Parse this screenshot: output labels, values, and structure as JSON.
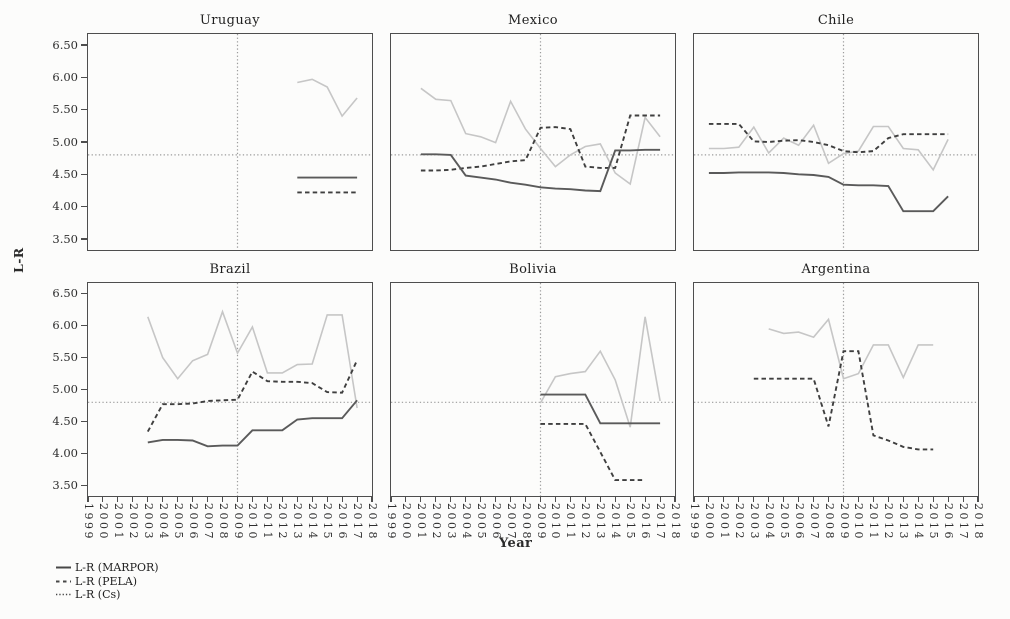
{
  "figure": {
    "y_axis_title": "L-R",
    "x_axis_title": "Year"
  },
  "colors": {
    "marpor": "#5a5a5a",
    "pela": "#3f3f3f",
    "cs": "#c6c6c6",
    "reference": "#9c9c9c",
    "frame": "#4e4e4e",
    "text": "#2b2b2b",
    "background": "#fcfcfb"
  },
  "axes": {
    "y_tick_labels": [
      "6.50",
      "6.00",
      "5.50",
      "5.00",
      "4.50",
      "4.00",
      "3.50"
    ],
    "y_tick_values": [
      6.5,
      6.0,
      5.5,
      5.0,
      4.5,
      4.0,
      3.5
    ],
    "x_tick_labels": [
      "1999",
      "2000",
      "2001",
      "2002",
      "2003",
      "2004",
      "2005",
      "2006",
      "2007",
      "2008",
      "2009",
      "2010",
      "2011",
      "2012",
      "2013",
      "2014",
      "2015",
      "2016",
      "2017",
      "2018"
    ],
    "x_range": [
      1999,
      2018
    ],
    "y_display_range": [
      3.33,
      6.67
    ],
    "grid": "off"
  },
  "legend": {
    "items": [
      {
        "label": "L-R (MARPOR)",
        "style": "solid"
      },
      {
        "label": "L-R (PELA)",
        "style": "dashed"
      },
      {
        "label": "L-R (Cs)",
        "style": "dotted"
      }
    ],
    "position": "bottom-left"
  },
  "chart_data": {
    "type": "line",
    "layout": "2x3 small multiples",
    "xlabel": "Year",
    "ylabel": "L-R",
    "reference_lines": {
      "horizontal_value": 4.8,
      "vertical_year": 2009,
      "style": "dotted"
    },
    "panels": [
      {
        "title": "Uruguay",
        "series": {
          "marpor": {
            "start_year": 2013,
            "values": [
              4.45,
              4.45,
              4.45,
              4.45,
              4.45
            ]
          },
          "pela": {
            "start_year": 2013,
            "values": [
              4.22,
              4.22,
              4.22,
              4.22,
              4.22
            ]
          },
          "cs": {
            "start_year": 2013,
            "values": [
              5.92,
              5.97,
              5.85,
              5.4,
              5.68
            ]
          }
        }
      },
      {
        "title": "Mexico",
        "series": {
          "marpor": {
            "start_year": 2001,
            "values": [
              4.81,
              4.81,
              4.8,
              4.48,
              4.45,
              4.42,
              4.37,
              4.34,
              4.3,
              4.28,
              4.27,
              4.25,
              4.24,
              4.87,
              4.87,
              4.88,
              4.88
            ]
          },
          "pela": {
            "start_year": 2001,
            "values": [
              4.56,
              4.56,
              4.57,
              4.6,
              4.62,
              4.66,
              4.7,
              4.72,
              5.22,
              5.23,
              5.2,
              4.62,
              4.6,
              4.6,
              5.41,
              5.41,
              5.41
            ]
          },
          "cs": {
            "start_year": 2001,
            "values": [
              5.83,
              5.66,
              5.64,
              5.13,
              5.08,
              4.99,
              5.63,
              5.2,
              4.9,
              4.62,
              4.8,
              4.93,
              4.97,
              4.52,
              4.35,
              5.38,
              5.08
            ]
          }
        }
      },
      {
        "title": "Chile",
        "series": {
          "marpor": {
            "start_year": 2000,
            "values": [
              4.52,
              4.52,
              4.53,
              4.53,
              4.53,
              4.52,
              4.5,
              4.49,
              4.46,
              4.34,
              4.33,
              4.33,
              4.32,
              3.93,
              3.93,
              3.93,
              4.16
            ]
          },
          "pela": {
            "start_year": 2000,
            "values": [
              5.28,
              5.28,
              5.28,
              5.01,
              5.0,
              5.02,
              5.03,
              5.0,
              4.95,
              4.86,
              4.84,
              4.86,
              5.06,
              5.12,
              5.12,
              5.12,
              5.12
            ]
          },
          "cs": {
            "start_year": 2000,
            "values": [
              4.9,
              4.9,
              4.92,
              5.23,
              4.83,
              5.06,
              4.95,
              5.26,
              4.67,
              4.82,
              4.86,
              5.24,
              5.24,
              4.9,
              4.88,
              4.57,
              5.04
            ]
          }
        }
      },
      {
        "title": "Brazil",
        "series": {
          "marpor": {
            "start_year": 2003,
            "values": [
              4.17,
              4.21,
              4.21,
              4.2,
              4.11,
              4.12,
              4.12,
              4.36,
              4.36,
              4.36,
              4.53,
              4.55,
              4.55,
              4.55,
              4.83
            ]
          },
          "pela": {
            "start_year": 2003,
            "values": [
              4.34,
              4.77,
              4.77,
              4.78,
              4.82,
              4.83,
              4.84,
              5.28,
              5.13,
              5.12,
              5.12,
              5.1,
              4.96,
              4.95,
              5.46
            ]
          },
          "cs": {
            "start_year": 2003,
            "values": [
              6.14,
              5.5,
              5.17,
              5.45,
              5.55,
              6.22,
              5.57,
              5.98,
              5.26,
              5.26,
              5.39,
              5.4,
              6.17,
              6.17,
              4.71
            ]
          }
        }
      },
      {
        "title": "Bolivia",
        "series": {
          "marpor": {
            "start_year": 2009,
            "values": [
              4.92,
              4.92,
              4.92,
              4.92,
              4.47,
              4.47,
              4.47,
              4.47,
              4.47
            ]
          },
          "pela": {
            "start_year": 2009,
            "values": [
              4.46,
              4.46,
              4.46,
              4.46,
              4.02,
              3.58,
              3.58,
              3.58
            ]
          },
          "cs": {
            "start_year": 2009,
            "values": [
              4.79,
              5.2,
              5.25,
              5.28,
              5.6,
              5.15,
              4.41,
              6.14,
              4.82
            ]
          }
        }
      },
      {
        "title": "Argentina",
        "series": {
          "marpor": {
            "start_year": 2003,
            "values": []
          },
          "pela": {
            "start_year": 2003,
            "values": [
              5.17,
              5.17,
              5.17,
              5.17,
              5.17,
              4.42,
              5.6,
              5.6,
              4.28,
              4.2,
              4.1,
              4.06,
              4.06
            ]
          },
          "cs": {
            "start_year": 2004,
            "values": [
              5.95,
              5.88,
              5.9,
              5.82,
              6.1,
              5.17,
              5.25,
              5.7,
              5.7,
              5.19,
              5.7,
              5.7
            ]
          }
        }
      }
    ]
  }
}
